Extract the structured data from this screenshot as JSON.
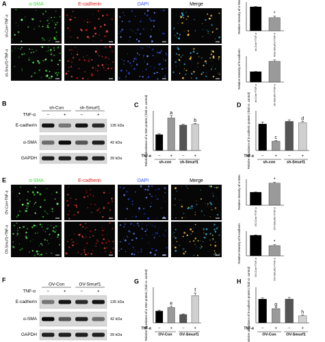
{
  "panels": {
    "A": {
      "label": "A",
      "channels": [
        "α-SMA",
        "E-cadherin",
        "DAPI",
        "Merge"
      ],
      "rows": [
        "sh-Con+TNF-α",
        "sh-Smurf1+TNF-α"
      ]
    },
    "B": {
      "label": "B",
      "treatment": "TNF-α",
      "groups": [
        "sh-Con",
        "sh-Smurf1"
      ],
      "signs": [
        "−",
        "+",
        "−",
        "+"
      ],
      "proteins": [
        "E-cadherin",
        "α-SMA",
        "GAPDH"
      ],
      "sizes": [
        "135 kDa",
        "42 kDa",
        "39 kDa"
      ]
    },
    "E": {
      "label": "E",
      "channels": [
        "α-SMA",
        "E-cadherin",
        "DAPI",
        "Merge"
      ],
      "rows": [
        "OV-Con+TNF-α",
        "OV-Smurf1+TNF-α"
      ]
    },
    "F": {
      "label": "F",
      "treatment": "TNF-α",
      "groups": [
        "OV-Con",
        "OV-Smurf1"
      ],
      "signs": [
        "−",
        "+",
        "−",
        "+"
      ],
      "proteins": [
        "E-cadherin",
        "α-SMA",
        "GAPDH"
      ],
      "sizes": [
        "135 kDa",
        "42 kDa",
        "39 kDa"
      ]
    }
  },
  "chart_data": [
    {
      "type": "bar",
      "y_label": "Relative intensity of α-SMA",
      "categories": [
        "sh-Con+TNF-α",
        "sh-Smurf1+TNF-α"
      ],
      "values": [
        1.0,
        0.55
      ],
      "errors": [
        0.02,
        0.06
      ],
      "colors": [
        "#000000",
        "#9a9a9a"
      ],
      "ylim": [
        0,
        1.2
      ],
      "annotations": [
        {
          "bar": 1,
          "text": "*"
        }
      ]
    },
    {
      "type": "bar",
      "y_label": "Relative intensity of E-cadherin",
      "categories": [
        "sh-Con+TNF-α",
        "sh-Smurf1+TNF-α"
      ],
      "values": [
        1.0,
        2.0
      ],
      "errors": [
        0.02,
        0.12
      ],
      "colors": [
        "#000000",
        "#9a9a9a"
      ],
      "ylim": [
        0,
        2.5
      ],
      "annotations": [
        {
          "bar": 1,
          "text": "*"
        }
      ]
    },
    {
      "type": "bar",
      "panel": "C",
      "y_label": "Relative abundance of α-SMA protein (-fold vs. control)",
      "x_label": "TNF-α",
      "categories": [
        "−",
        "+",
        "−",
        "+"
      ],
      "groups": [
        "sh-con",
        "sh-Smurf1"
      ],
      "values": [
        1.0,
        2.05,
        1.6,
        1.65
      ],
      "errors": [
        0.05,
        0.15,
        0.05,
        0.06
      ],
      "colors": [
        "#000000",
        "#9a9a9a",
        "#555555",
        "#d0d0d0"
      ],
      "ylim": [
        0,
        2.5
      ],
      "annotations": [
        {
          "bar": 1,
          "text": "a"
        },
        {
          "bar": 3,
          "text": "b"
        }
      ]
    },
    {
      "type": "bar",
      "panel": "D",
      "y_label": "Relative abundance of E-cadherin protein (-fold vs. control)",
      "x_label": "TNF-α",
      "categories": [
        "−",
        "+",
        "−",
        "+"
      ],
      "groups": [
        "sh-con",
        "sh-Smurf1"
      ],
      "values": [
        1.0,
        0.35,
        1.1,
        1.05
      ],
      "errors": [
        0.08,
        0.03,
        0.06,
        0.05
      ],
      "colors": [
        "#000000",
        "#9a9a9a",
        "#555555",
        "#d0d0d0"
      ],
      "ylim": [
        0,
        1.5
      ],
      "annotations": [
        {
          "bar": 1,
          "text": "c"
        },
        {
          "bar": 3,
          "text": "d"
        }
      ]
    },
    {
      "type": "bar",
      "y_label": "Relative intensity of α-SMA",
      "categories": [
        "OV-Con+TNF-α",
        "OV-Smurf1+TNF-α"
      ],
      "values": [
        1.0,
        1.7
      ],
      "errors": [
        0.02,
        0.06
      ],
      "colors": [
        "#000000",
        "#9a9a9a"
      ],
      "ylim": [
        0,
        2.0
      ],
      "annotations": [
        {
          "bar": 1,
          "text": "*"
        }
      ]
    },
    {
      "type": "bar",
      "y_label": "Relative intensity of E-cadherin",
      "categories": [
        "OV-Con+TNF-α",
        "OV-Smurf1+TNF-α"
      ],
      "values": [
        1.0,
        0.5
      ],
      "errors": [
        0.02,
        0.04
      ],
      "colors": [
        "#000000",
        "#9a9a9a"
      ],
      "ylim": [
        0,
        1.2
      ],
      "annotations": [
        {
          "bar": 1,
          "text": "*"
        }
      ]
    },
    {
      "type": "bar",
      "panel": "G",
      "y_label": "Relative abundance of α-SMA protein (-fold vs. control)",
      "x_label": "TNF-α",
      "categories": [
        "−",
        "+",
        "−",
        "+"
      ],
      "groups": [
        "OV-Con",
        "OV-Smurf1"
      ],
      "values": [
        1.0,
        1.3,
        0.7,
        2.3
      ],
      "errors": [
        0.06,
        0.1,
        0.05,
        0.2
      ],
      "colors": [
        "#000000",
        "#9a9a9a",
        "#555555",
        "#d0d0d0"
      ],
      "ylim": [
        0,
        3.0
      ],
      "annotations": [
        {
          "bar": 1,
          "text": "e"
        },
        {
          "bar": 3,
          "text": "f"
        }
      ]
    },
    {
      "type": "bar",
      "panel": "H",
      "y_label": "Relative abundance of E-cadherin protein (-fold vs. control)",
      "x_label": "TNF-α",
      "categories": [
        "−",
        "+",
        "−",
        "+"
      ],
      "groups": [
        "OV-Con",
        "OV-Smurf1"
      ],
      "values": [
        1.0,
        0.6,
        1.0,
        0.3
      ],
      "errors": [
        0.05,
        0.06,
        0.07,
        0.03
      ],
      "colors": [
        "#000000",
        "#9a9a9a",
        "#555555",
        "#d0d0d0"
      ],
      "ylim": [
        0,
        1.5
      ],
      "annotations": [
        {
          "bar": 1,
          "text": "g"
        },
        {
          "bar": 3,
          "text": "h"
        }
      ]
    }
  ]
}
